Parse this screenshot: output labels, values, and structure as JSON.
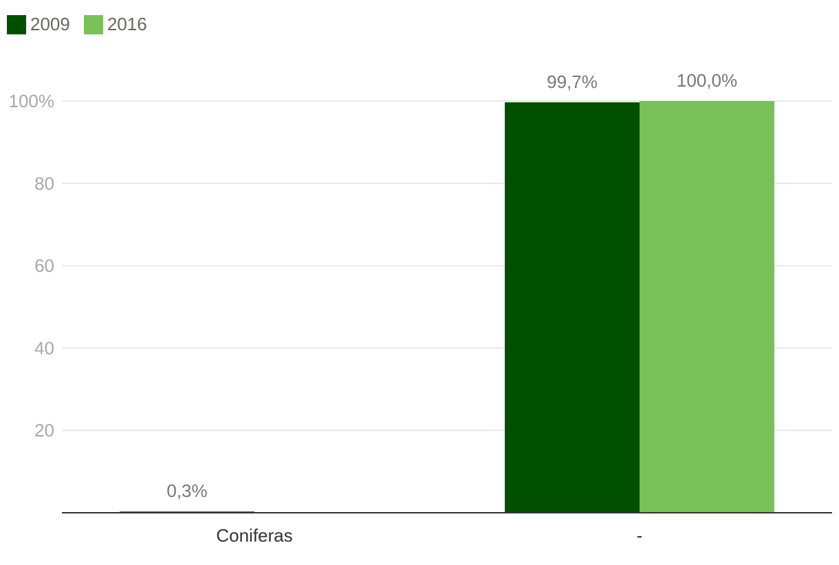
{
  "chart_data": {
    "type": "bar",
    "categories": [
      "Coniferas",
      "-"
    ],
    "series": [
      {
        "name": "2009",
        "values": [
          0.3,
          99.7
        ],
        "labels": [
          "0,3%",
          "99,7%"
        ],
        "color": "#005000"
      },
      {
        "name": "2016",
        "values": [
          null,
          100.0
        ],
        "labels": [
          "",
          "100,0%"
        ],
        "color": "#79c159"
      }
    ],
    "y_ticks": [
      {
        "value": 20,
        "label": "20"
      },
      {
        "value": 40,
        "label": "40"
      },
      {
        "value": 60,
        "label": "60"
      },
      {
        "value": 80,
        "label": "80"
      },
      {
        "value": 100,
        "label": "100%"
      }
    ],
    "ylim": [
      0,
      100
    ],
    "grid": true,
    "legend_position": "top-left",
    "title": "",
    "xlabel": "",
    "ylabel": ""
  }
}
